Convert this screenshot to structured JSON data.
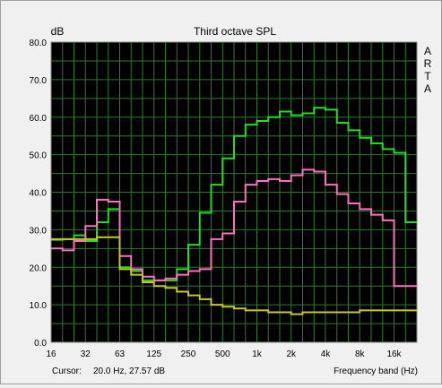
{
  "chart_data": {
    "type": "line",
    "title": "Third octave SPL",
    "ylabel": "dB",
    "xlabel": "Frequency band (Hz)",
    "watermark": "ARTA",
    "cursor_label": "Cursor:",
    "cursor_value": "20.0 Hz, 27.57 dB",
    "ylim": [
      0,
      80
    ],
    "yticks": [
      "0.0",
      "10.0",
      "20.0",
      "30.0",
      "40.0",
      "50.0",
      "60.0",
      "70.0",
      "80.0"
    ],
    "x": [
      "16",
      "20",
      "25",
      "32",
      "40",
      "50",
      "63",
      "80",
      "100",
      "125",
      "160",
      "200",
      "250",
      "315",
      "400",
      "500",
      "630",
      "800",
      "1k",
      "1.25k",
      "1.6k",
      "2k",
      "2.5k",
      "3.15k",
      "4k",
      "5k",
      "6.3k",
      "8k",
      "10k",
      "12.5k",
      "16k",
      "20k"
    ],
    "xticks": [
      "16",
      "32",
      "63",
      "125",
      "250",
      "500",
      "1k",
      "2k",
      "4k",
      "8k",
      "16k"
    ],
    "grid": true,
    "colors": {
      "background": "#000000",
      "grid": "#2f7a2f",
      "frame": "#8a8a8a"
    },
    "series": [
      {
        "color": "#20e020",
        "values": [
          27.3,
          27.5,
          28.5,
          27.0,
          32.0,
          35.5,
          20.0,
          19.0,
          16.5,
          16.5,
          16.5,
          19.5,
          26.0,
          34.5,
          42.0,
          49.0,
          55.0,
          58.0,
          59.0,
          60.0,
          61.5,
          60.5,
          61.0,
          62.5,
          62.0,
          58.5,
          56.5,
          54.5,
          53.0,
          51.5,
          50.5,
          32.0
        ]
      },
      {
        "color": "#ff70c0",
        "values": [
          25.0,
          24.5,
          27.0,
          31.0,
          38.0,
          37.5,
          23.0,
          19.5,
          17.5,
          16.5,
          17.0,
          18.0,
          19.0,
          19.5,
          27.5,
          29.0,
          37.5,
          42.0,
          43.0,
          43.5,
          43.0,
          44.5,
          46.0,
          45.5,
          42.0,
          39.5,
          37.0,
          35.5,
          34.0,
          32.5,
          15.0,
          15.0
        ]
      },
      {
        "color": "#c8c828",
        "values": [
          27.5,
          27.5,
          27.5,
          27.5,
          28.0,
          28.0,
          19.5,
          18.0,
          16.0,
          15.0,
          14.5,
          13.5,
          12.5,
          11.5,
          10.0,
          9.5,
          9.0,
          8.5,
          8.5,
          8.0,
          8.0,
          7.5,
          8.0,
          8.0,
          8.0,
          8.0,
          8.0,
          8.5,
          8.5,
          8.5,
          8.5,
          8.5
        ]
      }
    ]
  }
}
